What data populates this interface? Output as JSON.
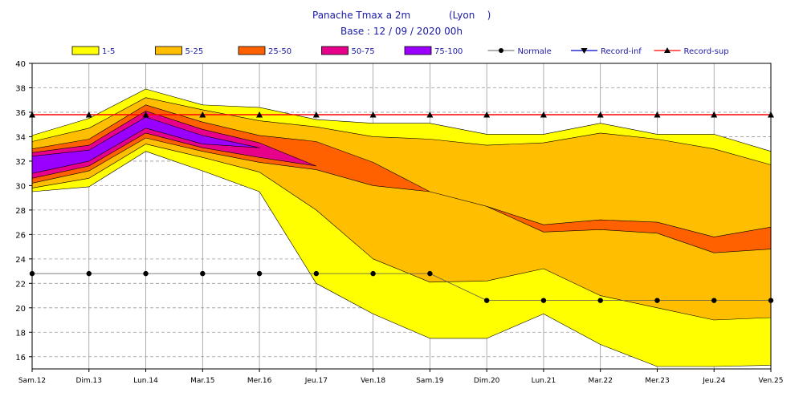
{
  "header": {
    "title": "Panache Tmax a 2m",
    "station": "(Lyon    )",
    "base": "Base : 12 / 09 / 2020 00h"
  },
  "legend": [
    {
      "label": "1-5",
      "color": "#ffff00",
      "kind": "box"
    },
    {
      "label": "5-25",
      "color": "#ffbf00",
      "kind": "box"
    },
    {
      "label": "25-50",
      "color": "#ff6000",
      "kind": "box"
    },
    {
      "label": "50-75",
      "color": "#e6008c",
      "kind": "box"
    },
    {
      "label": "75-100",
      "color": "#9900ff",
      "kind": "box"
    },
    {
      "label": "Normale",
      "color": "#000000",
      "line": "#808080",
      "kind": "dot"
    },
    {
      "label": "Record-inf",
      "color": "#000000",
      "line": "#0000cc",
      "kind": "tri-down"
    },
    {
      "label": "Record-sup",
      "color": "#000000",
      "line": "#ff0000",
      "kind": "tri-up"
    }
  ],
  "chart_data": {
    "type": "area",
    "title": "Panache Tmax a 2m",
    "x": [
      "Sam.12",
      "Dim.13",
      "Lun.14",
      "Mar.15",
      "Mer.16",
      "Jeu.17",
      "Ven.18",
      "Sam.19",
      "Dim.20",
      "Lun.21",
      "Mar.22",
      "Mer.23",
      "Jeu.24",
      "Ven.25"
    ],
    "ylim": [
      15,
      40
    ],
    "yticks": [
      16,
      18,
      20,
      22,
      24,
      26,
      28,
      30,
      32,
      34,
      36,
      38,
      40
    ],
    "grid": true,
    "legend_position": "top",
    "normale": [
      22.8,
      22.8,
      22.8,
      22.8,
      22.8,
      22.8,
      22.8,
      22.8,
      20.6,
      20.6,
      20.6,
      20.6,
      20.6,
      20.6
    ],
    "record_sup": [
      35.8,
      35.8,
      35.8,
      35.8,
      35.8,
      35.8,
      35.8,
      35.8,
      35.8,
      35.8,
      35.8,
      35.8,
      35.8,
      35.8
    ],
    "bands": [
      {
        "name": "1-5",
        "color": "#ffff00",
        "upper": [
          34.1,
          35.5,
          37.9,
          36.6,
          36.4,
          35.4,
          35.1,
          35.1,
          34.2,
          34.2,
          35.1,
          34.2,
          34.2,
          32.8
        ],
        "lower": [
          29.5,
          29.9,
          32.8,
          31.2,
          29.5,
          22.0,
          19.5,
          17.5,
          17.5,
          19.5,
          17.0,
          15.2,
          15.2,
          15.3
        ]
      },
      {
        "name": "5-25",
        "color": "#ffbf00",
        "upper": [
          33.6,
          34.7,
          37.2,
          36.2,
          35.3,
          34.8,
          34.0,
          33.8,
          33.3,
          33.5,
          34.3,
          33.8,
          33.0,
          31.7
        ],
        "lower": [
          29.8,
          30.6,
          33.4,
          32.3,
          31.1,
          28.0,
          24.0,
          22.1,
          22.2,
          23.2,
          21.0,
          20.0,
          19.0,
          19.2
        ]
      },
      {
        "name": "25-50",
        "color": "#ff6000",
        "upper": [
          33.0,
          33.8,
          36.6,
          35.2,
          34.1,
          33.6,
          31.9,
          29.5,
          28.3,
          26.8,
          27.2,
          27.0,
          25.8,
          26.6
        ],
        "lower": [
          30.2,
          31.2,
          33.9,
          32.8,
          31.9,
          31.3,
          30.0,
          29.5,
          28.3,
          26.2,
          26.4,
          26.1,
          24.5,
          24.8
        ]
      },
      {
        "name": "50-75",
        "color": "#e6008c",
        "upper": [
          32.7,
          33.3,
          36.1,
          34.6,
          33.5,
          31.6
        ],
        "lower": [
          30.6,
          31.6,
          34.3,
          33.1,
          32.3,
          31.6
        ]
      },
      {
        "name": "75-100",
        "color": "#9900ff",
        "upper": [
          32.4,
          32.9,
          35.6,
          34.1,
          33.1
        ],
        "lower": [
          31.0,
          32.0,
          34.7,
          33.4,
          33.1
        ]
      }
    ]
  }
}
